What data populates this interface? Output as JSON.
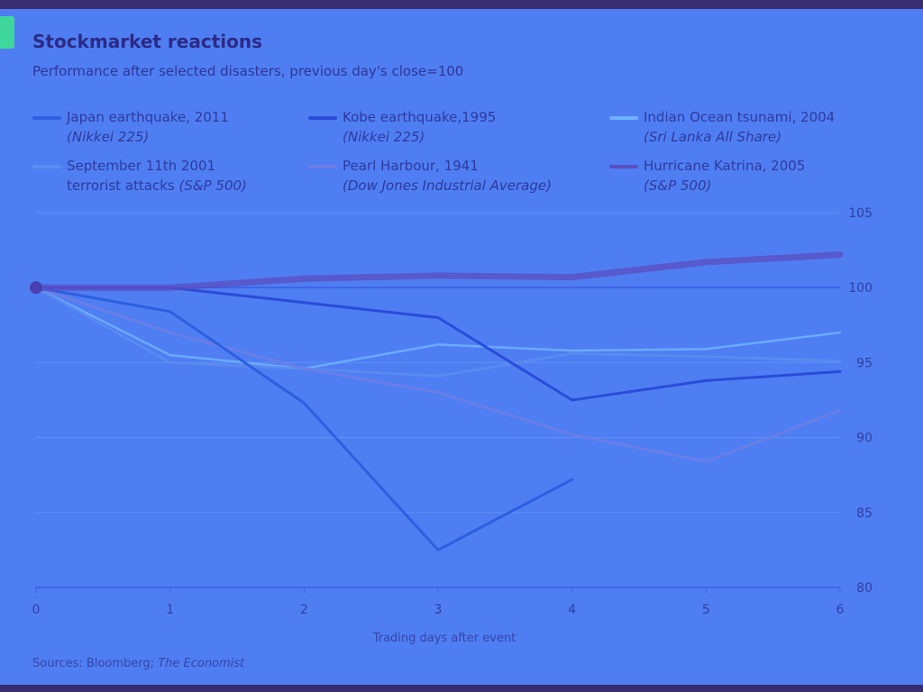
{
  "header": {
    "title": "Stockmarket reactions",
    "subtitle": "Performance after selected disasters, previous day's close=100"
  },
  "footer": {
    "source_label": "Sources: Bloomberg;",
    "source_italic": "The Economist"
  },
  "colors": {
    "background": "#4f7ef2",
    "frame": "#3a2c70",
    "accent": "#3ed69a"
  },
  "legend": [
    {
      "line1": "Japan earthquake, 2011",
      "line2": "(Nikkei 225)",
      "color": "#2d5fe0"
    },
    {
      "line1": "Kobe earthquake,1995",
      "line2": "(Nikkei 225)",
      "color": "#2a4cd8"
    },
    {
      "line1": "Indian Ocean tsunami, 2004",
      "line2": "(Sri Lanka All Share)",
      "color": "#6fb2ff"
    },
    {
      "line1": "September 11th 2001",
      "line2": "terrorist attacks",
      "line2_extra": "(S&P 500)",
      "color": "#5c8cf0"
    },
    {
      "line1": "Pearl Harbour, 1941",
      "line2": "(Dow Jones Industrial Average)",
      "color": "#6a7ee6"
    },
    {
      "line1": "Hurricane Katrina, 2005",
      "line2": "(S&P 500)",
      "color": "#5b4ec0"
    }
  ],
  "chart_data": {
    "type": "line",
    "xlabel": "Trading days after event",
    "ylabel": "",
    "x": [
      0,
      1,
      2,
      3,
      4,
      5,
      6
    ],
    "xlim": [
      0,
      6
    ],
    "ylim": [
      80,
      105
    ],
    "yticks": [
      80,
      85,
      90,
      95,
      100,
      105
    ],
    "xticks": [
      0,
      1,
      2,
      3,
      4,
      5,
      6
    ],
    "grid": true,
    "legend_position": "top",
    "series": [
      {
        "name": "Japan earthquake, 2011 (Nikkei 225)",
        "x": [
          0,
          1,
          2,
          3,
          4
        ],
        "values": [
          100,
          98.4,
          92.3,
          82.5,
          87.2
        ]
      },
      {
        "name": "Kobe earthquake,1995 (Nikkei 225)",
        "x": [
          0,
          1,
          2,
          3,
          4,
          5,
          6
        ],
        "values": [
          100,
          100,
          99.0,
          98.0,
          92.5,
          93.8,
          94.4
        ]
      },
      {
        "name": "Indian Ocean tsunami, 2004 (Sri Lanka All Share)",
        "x": [
          0,
          1,
          2,
          3,
          4,
          5,
          6
        ],
        "values": [
          100,
          95.5,
          94.6,
          96.2,
          95.8,
          95.9,
          97.0
        ]
      },
      {
        "name": "September 11th 2001 terrorist attacks (S&P 500)",
        "x": [
          0,
          1,
          2,
          3,
          4,
          5,
          6
        ],
        "values": [
          100,
          95.0,
          94.6,
          94.1,
          95.6,
          95.4,
          95.1
        ]
      },
      {
        "name": "Pearl Harbour, 1941 (Dow Jones Industrial Average)",
        "x": [
          0,
          1,
          2,
          3,
          4,
          5,
          6
        ],
        "values": [
          100,
          97.0,
          94.6,
          93.0,
          90.2,
          88.4,
          91.8
        ]
      },
      {
        "name": "Hurricane Katrina, 2005 (S&P 500)",
        "x": [
          0,
          1,
          2,
          3,
          4,
          5,
          6
        ],
        "values": [
          100,
          100.0,
          100.6,
          100.8,
          100.7,
          101.7,
          102.2
        ]
      }
    ]
  }
}
